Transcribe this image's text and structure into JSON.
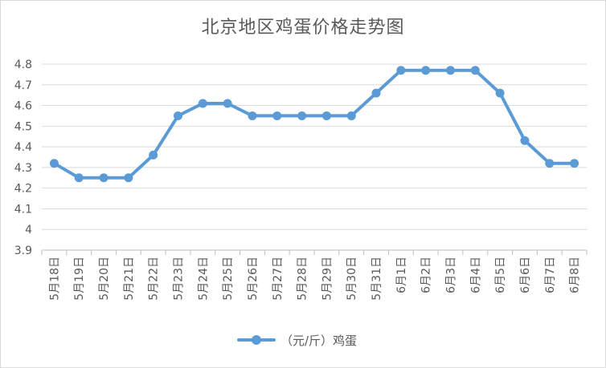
{
  "chart_data": {
    "type": "line",
    "title": "北京地区鸡蛋价格走势图",
    "categories": [
      "5月18日",
      "5月19日",
      "5月20日",
      "5月21日",
      "5月22日",
      "5月23日",
      "5月24日",
      "5月25日",
      "5月26日",
      "5月27日",
      "5月28日",
      "5月29日",
      "5月30日",
      "5月31日",
      "6月1日",
      "6月2日",
      "6月3日",
      "6月4日",
      "6月5日",
      "6月6日",
      "6月7日",
      "6月8日"
    ],
    "series": [
      {
        "name": "（元/斤）鸡蛋",
        "values": [
          4.32,
          4.25,
          4.25,
          4.25,
          4.36,
          4.55,
          4.61,
          4.61,
          4.55,
          4.55,
          4.55,
          4.55,
          4.55,
          4.66,
          4.77,
          4.77,
          4.77,
          4.77,
          4.66,
          4.43,
          4.32,
          4.32
        ],
        "color": "#5b9bd5"
      }
    ],
    "ylim": [
      3.9,
      4.8
    ],
    "yticks": [
      "3.9",
      "4",
      "4.1",
      "4.2",
      "4.3",
      "4.4",
      "4.5",
      "4.6",
      "4.7",
      "4.8"
    ],
    "xlabel": "",
    "ylabel": "",
    "grid": true,
    "legend_position": "bottom",
    "gridline_color": "#d9d9d9"
  }
}
